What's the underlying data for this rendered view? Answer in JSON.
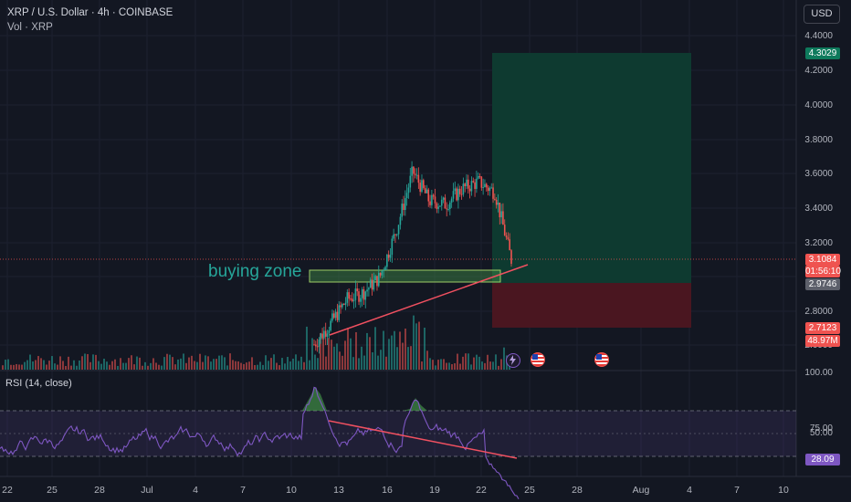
{
  "header": {
    "symbol_line": "XRP / U.S. Dollar · 4h · COINBASE",
    "volume_line": "Vol · XRP"
  },
  "currency_button": "USD",
  "annotation": {
    "zone_label": "buying zone"
  },
  "rsi": {
    "label": "RSI (14, close)",
    "value_label": "28.09",
    "levels": [
      "75.00",
      "50.00"
    ]
  },
  "price_axis": {
    "ticks": [
      "4.4000",
      "4.2000",
      "4.0000",
      "3.8000",
      "3.6000",
      "3.4000",
      "3.2000",
      "2.8000",
      "2.6000"
    ],
    "volume_tick": "100.00",
    "labels": {
      "target": "4.3029",
      "current_price": "3.1084",
      "countdown": "01:56:10",
      "entry": "2.9746",
      "stop": "2.7123",
      "volume": "48.97M"
    }
  },
  "time_axis": [
    "22",
    "25",
    "28",
    "Jul",
    "4",
    "7",
    "10",
    "13",
    "16",
    "19",
    "22",
    "25",
    "28",
    "Aug",
    "4",
    "7",
    "10"
  ],
  "colors": {
    "up": "#26a69a",
    "down": "#ef5350",
    "rsi_line": "#7e57c2",
    "target_zone": "#0e3a30",
    "stop_zone": "#4a1620",
    "trendline": "#f05060"
  },
  "event_icons": [
    "flash-event-icon",
    "us-flag-event-icon",
    "us-flag-event-icon"
  ],
  "chart_data": {
    "type": "candlestick",
    "x_label_dates": [
      "Jun 22",
      "Jun 25",
      "Jun 28",
      "Jul 1",
      "Jul 4",
      "Jul 7",
      "Jul 10",
      "Jul 13",
      "Jul 16",
      "Jul 19",
      "Jul 22",
      "Jul 25",
      "Jul 28",
      "Aug 1",
      "Aug 4",
      "Aug 7",
      "Aug 10"
    ],
    "price_range": [
      2.6,
      4.45
    ],
    "price_key_points": [
      {
        "date": "Jul 11",
        "close": 2.62
      },
      {
        "date": "Jul 12",
        "close": 2.74
      },
      {
        "date": "Jul 14",
        "close": 2.88
      },
      {
        "date": "Jul 15",
        "close": 2.92
      },
      {
        "date": "Jul 16",
        "close": 3.01
      },
      {
        "date": "Jul 17",
        "close": 3.28
      },
      {
        "date": "Jul 18",
        "close": 3.62
      },
      {
        "date": "Jul 19",
        "close": 3.45
      },
      {
        "date": "Jul 20",
        "close": 3.43
      },
      {
        "date": "Jul 21",
        "close": 3.52
      },
      {
        "date": "Jul 22",
        "close": 3.56
      },
      {
        "date": "Jul 23",
        "close": 3.5
      },
      {
        "date": "Jul 24",
        "close": 3.1084
      }
    ],
    "trade": {
      "entry": 2.9746,
      "target": 4.3029,
      "stop": 2.7123
    },
    "buying_zone": [
      2.975,
      3.005
    ],
    "rsi_current": 28.09,
    "volume_current": "48.97M"
  }
}
